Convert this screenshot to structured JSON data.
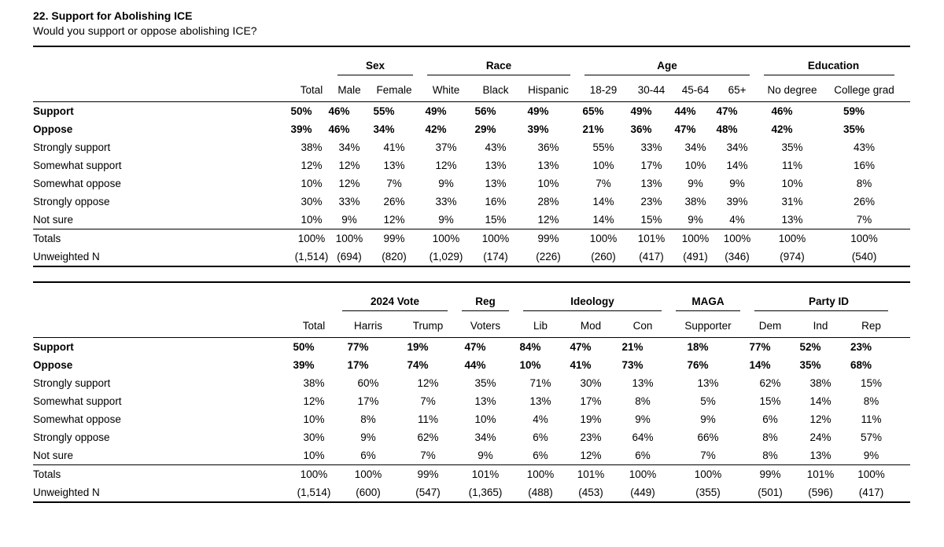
{
  "title": "22. Support for Abolishing ICE",
  "subtitle": "Would you support or oppose abolishing ICE?",
  "row_labels": [
    "Support",
    "Oppose",
    "Strongly support",
    "Somewhat support",
    "Somewhat oppose",
    "Strongly oppose",
    "Not sure"
  ],
  "totals_label": "Totals",
  "unweighted_label": "Unweighted N",
  "colors": {
    "text": "#000000",
    "background": "#ffffff",
    "rule": "#000000"
  },
  "tables": [
    {
      "name": "demographics",
      "groups": [
        {
          "label": "",
          "span": 2
        },
        {
          "label": "Sex",
          "span": 2
        },
        {
          "label": "Race",
          "span": 3
        },
        {
          "label": "Age",
          "span": 4
        },
        {
          "label": "Education",
          "span": 2
        }
      ],
      "columns": [
        "Total",
        "Male",
        "Female",
        "White",
        "Black",
        "Hispanic",
        "18-29",
        "30-44",
        "45-64",
        "65+",
        "No degree",
        "College grad"
      ],
      "rows": [
        {
          "label": "Support",
          "bold": true,
          "values": [
            "50%",
            "46%",
            "55%",
            "49%",
            "56%",
            "49%",
            "65%",
            "49%",
            "44%",
            "47%",
            "46%",
            "59%"
          ]
        },
        {
          "label": "Oppose",
          "bold": true,
          "values": [
            "39%",
            "46%",
            "34%",
            "42%",
            "29%",
            "39%",
            "21%",
            "36%",
            "47%",
            "48%",
            "42%",
            "35%"
          ]
        },
        {
          "label": "Strongly support",
          "bold": false,
          "values": [
            "38%",
            "34%",
            "41%",
            "37%",
            "43%",
            "36%",
            "55%",
            "33%",
            "34%",
            "34%",
            "35%",
            "43%"
          ]
        },
        {
          "label": "Somewhat support",
          "bold": false,
          "values": [
            "12%",
            "12%",
            "13%",
            "12%",
            "13%",
            "13%",
            "10%",
            "17%",
            "10%",
            "14%",
            "11%",
            "16%"
          ]
        },
        {
          "label": "Somewhat oppose",
          "bold": false,
          "values": [
            "10%",
            "12%",
            "7%",
            "9%",
            "13%",
            "10%",
            "7%",
            "13%",
            "9%",
            "9%",
            "10%",
            "8%"
          ]
        },
        {
          "label": "Strongly oppose",
          "bold": false,
          "values": [
            "30%",
            "33%",
            "26%",
            "33%",
            "16%",
            "28%",
            "14%",
            "23%",
            "38%",
            "39%",
            "31%",
            "26%"
          ]
        },
        {
          "label": "Not sure",
          "bold": false,
          "values": [
            "10%",
            "9%",
            "12%",
            "9%",
            "15%",
            "12%",
            "14%",
            "15%",
            "9%",
            "4%",
            "13%",
            "7%"
          ]
        }
      ],
      "totals": [
        "100%",
        "100%",
        "99%",
        "100%",
        "100%",
        "99%",
        "100%",
        "101%",
        "100%",
        "100%",
        "100%",
        "100%"
      ],
      "unweighted": [
        "(1,514)",
        "(694)",
        "(820)",
        "(1,029)",
        "(174)",
        "(226)",
        "(260)",
        "(417)",
        "(491)",
        "(346)",
        "(974)",
        "(540)"
      ]
    },
    {
      "name": "politics",
      "groups": [
        {
          "label": "",
          "span": 2
        },
        {
          "label": "2024 Vote",
          "span": 2
        },
        {
          "label": "Reg",
          "span": 1
        },
        {
          "label": "Ideology",
          "span": 3
        },
        {
          "label": "MAGA",
          "span": 1
        },
        {
          "label": "Party ID",
          "span": 3
        }
      ],
      "columns": [
        "Total",
        "Harris",
        "Trump",
        "Voters",
        "Lib",
        "Mod",
        "Con",
        "Supporter",
        "Dem",
        "Ind",
        "Rep"
      ],
      "rows": [
        {
          "label": "Support",
          "bold": true,
          "values": [
            "50%",
            "77%",
            "19%",
            "47%",
            "84%",
            "47%",
            "21%",
            "18%",
            "77%",
            "52%",
            "23%"
          ]
        },
        {
          "label": "Oppose",
          "bold": true,
          "values": [
            "39%",
            "17%",
            "74%",
            "44%",
            "10%",
            "41%",
            "73%",
            "76%",
            "14%",
            "35%",
            "68%"
          ]
        },
        {
          "label": "Strongly support",
          "bold": false,
          "values": [
            "38%",
            "60%",
            "12%",
            "35%",
            "71%",
            "30%",
            "13%",
            "13%",
            "62%",
            "38%",
            "15%"
          ]
        },
        {
          "label": "Somewhat support",
          "bold": false,
          "values": [
            "12%",
            "17%",
            "7%",
            "13%",
            "13%",
            "17%",
            "8%",
            "5%",
            "15%",
            "14%",
            "8%"
          ]
        },
        {
          "label": "Somewhat oppose",
          "bold": false,
          "values": [
            "10%",
            "8%",
            "11%",
            "10%",
            "4%",
            "19%",
            "9%",
            "9%",
            "6%",
            "12%",
            "11%"
          ]
        },
        {
          "label": "Strongly oppose",
          "bold": false,
          "values": [
            "30%",
            "9%",
            "62%",
            "34%",
            "6%",
            "23%",
            "64%",
            "66%",
            "8%",
            "24%",
            "57%"
          ]
        },
        {
          "label": "Not sure",
          "bold": false,
          "values": [
            "10%",
            "6%",
            "7%",
            "9%",
            "6%",
            "12%",
            "6%",
            "7%",
            "8%",
            "13%",
            "9%"
          ]
        }
      ],
      "totals": [
        "100%",
        "100%",
        "99%",
        "101%",
        "100%",
        "101%",
        "100%",
        "100%",
        "99%",
        "101%",
        "100%"
      ],
      "unweighted": [
        "(1,514)",
        "(600)",
        "(547)",
        "(1,365)",
        "(488)",
        "(453)",
        "(449)",
        "(355)",
        "(501)",
        "(596)",
        "(417)"
      ]
    }
  ]
}
